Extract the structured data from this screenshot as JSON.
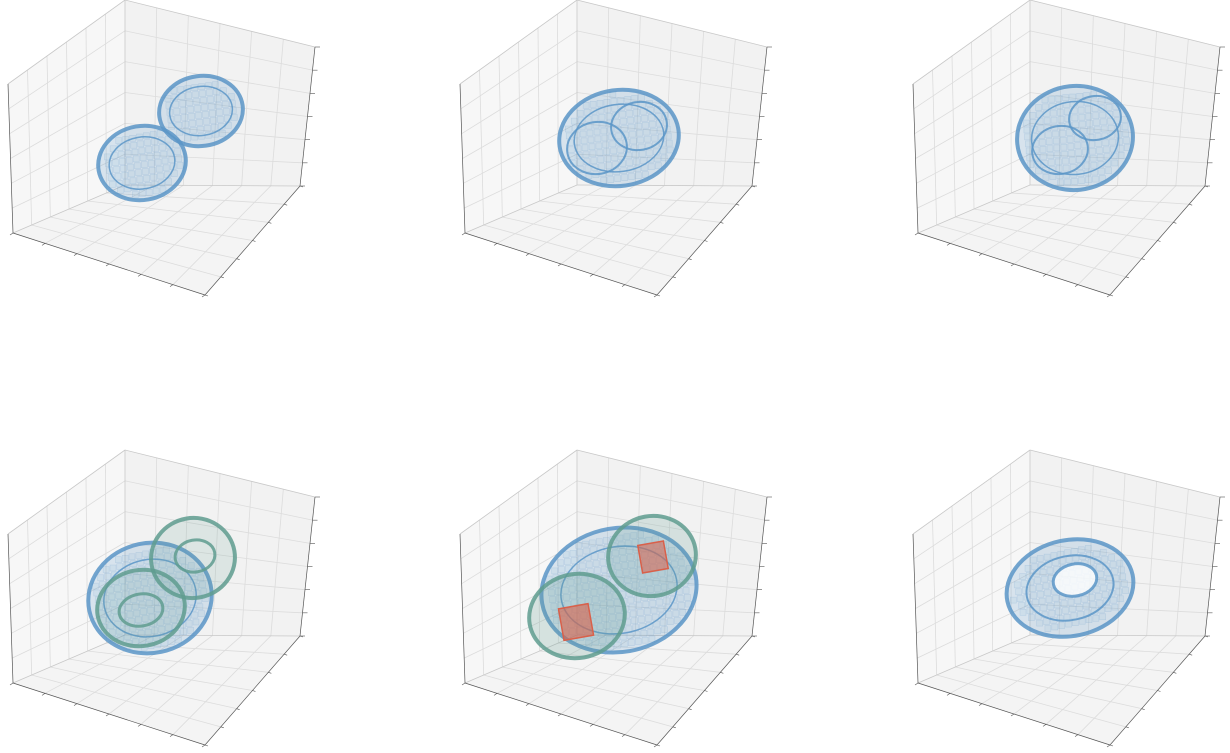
{
  "chart_data": [
    {
      "type": "voxel-3d",
      "panel": 1,
      "title": "",
      "xlabel": "",
      "ylabel": "",
      "zlabel": "",
      "tick_labels_visible": false,
      "grid": true,
      "colors": {
        "blue": "#5b95c7",
        "green": "#5f9c8f",
        "red": "#d9604a"
      },
      "objects": [
        {
          "shape": "sphere",
          "color": "blue",
          "count": 2
        }
      ]
    },
    {
      "type": "voxel-3d",
      "panel": 2,
      "title": "",
      "xlabel": "",
      "ylabel": "",
      "zlabel": "",
      "tick_labels_visible": false,
      "grid": true,
      "colors": {
        "blue": "#5b95c7"
      },
      "objects": [
        {
          "shape": "merged-spheres",
          "color": "blue",
          "count": 1
        }
      ]
    },
    {
      "type": "voxel-3d",
      "panel": 3,
      "title": "",
      "xlabel": "",
      "ylabel": "",
      "zlabel": "",
      "tick_labels_visible": false,
      "grid": true,
      "colors": {
        "blue": "#5b95c7"
      },
      "objects": [
        {
          "shape": "merged-spheres",
          "color": "blue",
          "count": 1
        }
      ]
    },
    {
      "type": "voxel-3d",
      "panel": 4,
      "title": "",
      "xlabel": "",
      "ylabel": "",
      "zlabel": "",
      "tick_labels_visible": false,
      "grid": true,
      "colors": {
        "blue": "#5b95c7",
        "green": "#5f9c8f"
      },
      "objects": [
        {
          "shape": "merged-spheres",
          "color": "blue",
          "count": 1
        },
        {
          "shape": "shell",
          "color": "green",
          "count": 2
        }
      ]
    },
    {
      "type": "voxel-3d",
      "panel": 5,
      "title": "",
      "xlabel": "",
      "ylabel": "",
      "zlabel": "",
      "tick_labels_visible": false,
      "grid": true,
      "colors": {
        "blue": "#5b95c7",
        "green": "#5f9c8f",
        "red": "#d9604a"
      },
      "objects": [
        {
          "shape": "merged-spheres",
          "color": "blue",
          "count": 1
        },
        {
          "shape": "shell",
          "color": "green",
          "count": 2
        },
        {
          "shape": "core",
          "color": "red",
          "count": 2
        }
      ]
    },
    {
      "type": "voxel-3d",
      "panel": 6,
      "title": "",
      "xlabel": "",
      "ylabel": "",
      "zlabel": "",
      "tick_labels_visible": false,
      "grid": true,
      "colors": {
        "blue": "#5b95c7"
      },
      "objects": [
        {
          "shape": "torus",
          "color": "blue",
          "count": 1
        }
      ]
    }
  ]
}
